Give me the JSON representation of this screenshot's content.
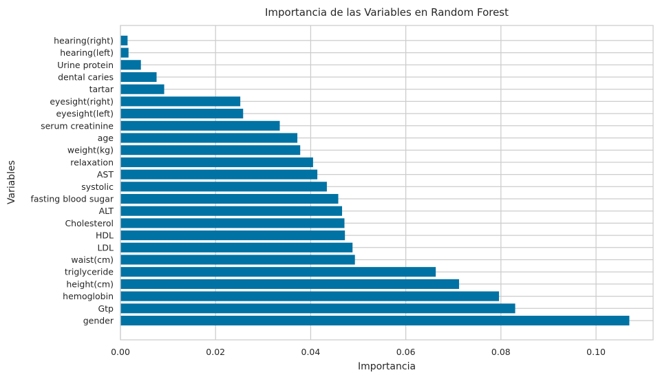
{
  "chart_data": {
    "type": "bar",
    "orientation": "horizontal",
    "title": "Importancia de las Variables en Random Forest",
    "xlabel": "Importancia",
    "ylabel": "Variables",
    "xlim": [
      0,
      0.112
    ],
    "xticks": [
      0,
      0.02,
      0.04,
      0.06,
      0.08,
      0.1
    ],
    "xtick_labels": [
      "0.00",
      "0.02",
      "0.04",
      "0.06",
      "0.08",
      "0.10"
    ],
    "grid": true,
    "bar_color": "#0072a3",
    "categories": [
      "gender",
      "Gtp",
      "hemoglobin",
      "height(cm)",
      "triglyceride",
      "waist(cm)",
      "LDL",
      "HDL",
      "Cholesterol",
      "ALT",
      "fasting blood sugar",
      "systolic",
      "AST",
      "relaxation",
      "weight(kg)",
      "age",
      "serum creatinine",
      "eyesight(left)",
      "eyesight(right)",
      "tartar",
      "dental caries",
      "Urine protein",
      "hearing(left)",
      "hearing(right)"
    ],
    "values": [
      0.107,
      0.083,
      0.0796,
      0.0712,
      0.0663,
      0.0493,
      0.0488,
      0.0472,
      0.0471,
      0.0466,
      0.0458,
      0.0434,
      0.0414,
      0.0405,
      0.0378,
      0.0372,
      0.0335,
      0.0258,
      0.0252,
      0.0092,
      0.0076,
      0.0043,
      0.0017,
      0.0015
    ]
  }
}
